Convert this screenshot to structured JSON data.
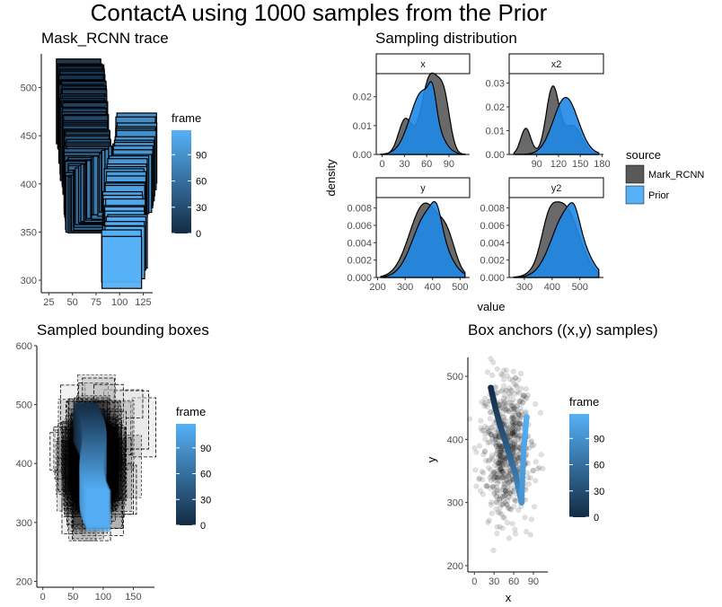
{
  "title": "ContactA using 1000 samples from the Prior",
  "colors": {
    "dark": "#132b43",
    "light": "#56b1f7",
    "mark": "#595959",
    "prior": "#1f88e6"
  },
  "chart_data": [
    {
      "type": "heatmap",
      "title": "Mask_RCNN trace",
      "xlabel": "",
      "ylabel": "",
      "xlim": [
        17,
        135
      ],
      "ylim": [
        287,
        535
      ],
      "x_ticks": [
        25,
        50,
        75,
        100,
        125
      ],
      "y_ticks": [
        300,
        350,
        400,
        450,
        500
      ],
      "legend": {
        "title": "frame",
        "ticks": [
          0,
          30,
          60,
          90
        ],
        "range": [
          0,
          118
        ],
        "placement": "right"
      },
      "boxes_start": {
        "x": 35,
        "y": 440,
        "w": 47,
        "h": 88
      },
      "boxes_end": {
        "x": 80,
        "y": 293,
        "w": 40,
        "h": 54
      }
    },
    {
      "type": "area",
      "title": "Sampling distribution",
      "xlabel": "value",
      "ylabel": "density",
      "legend": {
        "title": "source",
        "entries": [
          "Mark_RCNN",
          "Prior"
        ],
        "placement": "right"
      },
      "panels": [
        {
          "strip": "x",
          "xlim": [
            -8,
            118
          ],
          "ylim": [
            0,
            0.028
          ],
          "x_ticks": [
            0,
            30,
            60,
            90
          ],
          "y_ticks": [
            0.0,
            0.01,
            0.02
          ],
          "mark_peaks": [
            [
              31,
              0.012,
              9
            ],
            [
              65,
              0.027,
              12
            ],
            [
              84,
              0.015,
              8
            ]
          ],
          "prior_peaks": [
            [
              55,
              0.022,
              17
            ],
            [
              68,
              0.008,
              5
            ]
          ]
        },
        {
          "strip": "x2",
          "xlim": [
            52,
            182
          ],
          "ylim": [
            0,
            0.034
          ],
          "x_ticks": [
            90,
            120,
            150,
            180
          ],
          "y_ticks": [
            0.0,
            0.01,
            0.02,
            0.03
          ],
          "mark_peaks": [
            [
              75,
              0.011,
              7
            ],
            [
              112,
              0.028,
              9
            ],
            [
              140,
              0.012,
              12
            ]
          ],
          "prior_peaks": [
            [
              130,
              0.024,
              17
            ]
          ]
        },
        {
          "strip": "y",
          "xlim": [
            195,
            535
          ],
          "ylim": [
            0,
            0.0092
          ],
          "x_ticks": [
            200,
            300,
            400,
            500
          ],
          "y_ticks": [
            0.0,
            0.002,
            0.004,
            0.006,
            0.008
          ],
          "mark_peaks": [
            [
              372,
              0.0085,
              55
            ],
            [
              455,
              0.003,
              30
            ]
          ],
          "prior_peaks": [
            [
              385,
              0.0075,
              55
            ],
            [
              415,
              0.002,
              18
            ]
          ]
        },
        {
          "strip": "y2",
          "xlim": [
            245,
            585
          ],
          "ylim": [
            0,
            0.0092
          ],
          "x_ticks": [
            300,
            400,
            500
          ],
          "y_ticks": [
            0.0,
            0.002,
            0.004,
            0.006,
            0.008
          ],
          "mark_peaks": [
            [
              440,
              0.0083,
              55
            ],
            [
              385,
              0.0025,
              25
            ]
          ],
          "prior_peaks": [
            [
              455,
              0.0076,
              55
            ],
            [
              480,
              0.0015,
              18
            ]
          ]
        }
      ]
    },
    {
      "type": "heatmap",
      "title": "Sampled bounding boxes",
      "xlabel": "",
      "ylabel": "",
      "xlim": [
        -10,
        185
      ],
      "ylim": [
        190,
        600
      ],
      "x_ticks": [
        0,
        50,
        100,
        150
      ],
      "y_ticks": [
        200,
        300,
        400,
        500,
        600
      ],
      "legend": {
        "title": "frame",
        "ticks": [
          0,
          30,
          60,
          90
        ],
        "range": [
          0,
          118
        ],
        "placement": "right"
      },
      "cloud_center": [
        85,
        400
      ]
    },
    {
      "type": "scatter",
      "title": "Box anchors ((x,y) samples)",
      "xlabel": "x",
      "ylabel": "y",
      "xlim": [
        -10,
        112
      ],
      "ylim": [
        190,
        530
      ],
      "x_ticks": [
        0,
        30,
        60,
        90
      ],
      "y_ticks": [
        200,
        300,
        400,
        500
      ],
      "legend": {
        "title": "frame",
        "ticks": [
          0,
          30,
          60,
          90
        ],
        "range": [
          0,
          118
        ],
        "placement": "right"
      },
      "cloud": {
        "n": 700,
        "mean": [
          50,
          385
        ],
        "sd": [
          18,
          55
        ]
      },
      "trace": [
        [
          25,
          482
        ],
        [
          32,
          450
        ],
        [
          40,
          420
        ],
        [
          48,
          395
        ],
        [
          55,
          370
        ],
        [
          63,
          345
        ],
        [
          68,
          320
        ],
        [
          72,
          300
        ],
        [
          75,
          380
        ],
        [
          80,
          440
        ]
      ]
    }
  ]
}
